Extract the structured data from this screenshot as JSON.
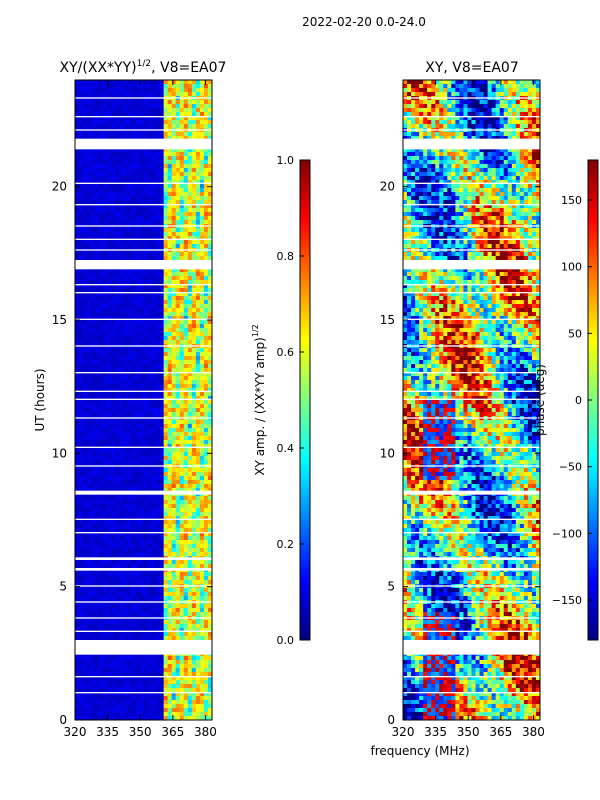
{
  "figure": {
    "suptitle": "2022-02-20 0.0-24.0",
    "shared_xlabel": "frequency (MHz)"
  },
  "colors": {
    "jet_stops": [
      "#00007f",
      "#0000ff",
      "#007fff",
      "#00ffff",
      "#7fff7f",
      "#ffff00",
      "#ff7f00",
      "#ff0000",
      "#7f0000"
    ],
    "blank_row": "#ffffff"
  },
  "chart_data": [
    {
      "type": "heatmap",
      "id": "amp",
      "title": "XY/(XX*YY)",
      "title_exponent": "1/2",
      "title_suffix": ", V8=EA07",
      "xlabel": "",
      "ylabel": "UT (hours)",
      "xlim": [
        320,
        383
      ],
      "ylim": [
        0,
        24
      ],
      "xticks": [
        320,
        335,
        350,
        365,
        380
      ],
      "yticks": [
        0,
        5,
        10,
        15,
        20
      ],
      "colorbar": {
        "label": "XY amp. / (XX*YY amp)",
        "label_exponent": "1/2",
        "range": [
          0.0,
          1.0
        ],
        "ticks": [
          "0.0",
          "0.2",
          "0.4",
          "0.6",
          "0.8",
          "1.0"
        ]
      }
    },
    {
      "type": "heatmap",
      "id": "phase",
      "title": "XY, V8=EA07",
      "xlabel": "frequency (MHz)",
      "ylabel": "",
      "xlim": [
        320,
        383
      ],
      "ylim": [
        0,
        24
      ],
      "xticks": [
        320,
        335,
        350,
        365,
        380
      ],
      "yticks": [
        0,
        5,
        10,
        15,
        20
      ],
      "colorbar": {
        "label": "phase (deg)",
        "range": [
          -180,
          180
        ],
        "ticks": [
          "-150",
          "-100",
          "-50",
          "0",
          "50",
          "100",
          "150"
        ]
      }
    }
  ],
  "gaps_hours": [
    [
      2.45,
      3.0
    ],
    [
      16.9,
      17.25
    ],
    [
      21.4,
      21.8
    ],
    [
      12.0,
      12.05
    ],
    [
      8.45,
      8.6
    ],
    [
      6.0,
      6.1
    ],
    [
      5.6,
      5.7
    ],
    [
      4.4,
      4.45
    ],
    [
      7.0,
      7.05
    ],
    [
      9.5,
      9.55
    ],
    [
      10.2,
      10.25
    ],
    [
      11.3,
      11.35
    ],
    [
      12.3,
      12.35
    ],
    [
      13.0,
      13.05
    ],
    [
      14.0,
      14.05
    ],
    [
      15.0,
      15.05
    ],
    [
      16.0,
      16.05
    ],
    [
      18.0,
      18.05
    ],
    [
      18.5,
      18.55
    ],
    [
      19.3,
      19.35
    ],
    [
      20.1,
      20.15
    ],
    [
      22.1,
      22.15
    ],
    [
      22.6,
      22.65
    ],
    [
      23.3,
      23.35
    ],
    [
      1.6,
      1.65
    ],
    [
      1.0,
      1.05
    ],
    [
      3.3,
      3.35
    ],
    [
      3.8,
      3.85
    ],
    [
      5.0,
      5.05
    ],
    [
      7.5,
      7.55
    ],
    [
      16.3,
      16.35
    ],
    [
      17.6,
      17.65
    ]
  ]
}
